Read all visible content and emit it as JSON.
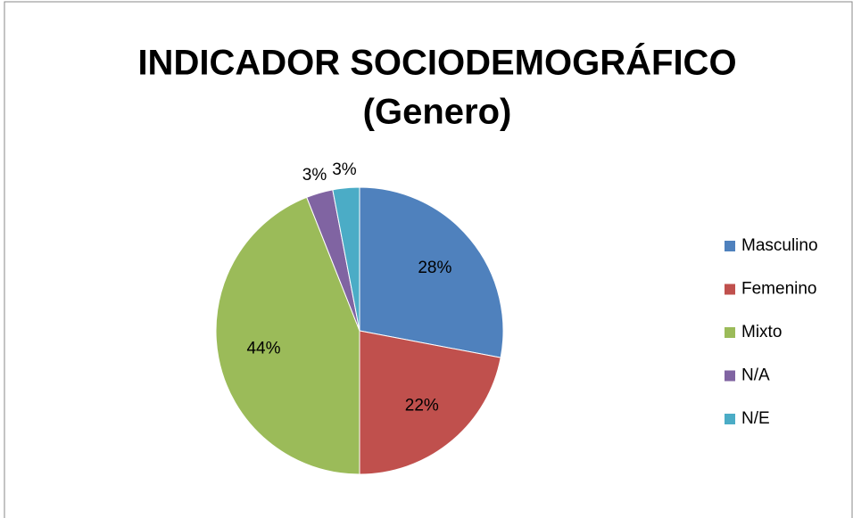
{
  "chart_data": {
    "type": "pie",
    "title": [
      "INDICADOR SOCIODEMOGRÁFICO",
      "(Genero)"
    ],
    "categories": [
      "Masculino",
      "Femenino",
      "Mixto",
      "N/A",
      "N/E"
    ],
    "values": [
      28,
      22,
      44,
      3,
      3
    ],
    "value_labels": [
      "28%",
      "22%",
      "44%",
      "3%",
      "3%"
    ],
    "colors": [
      "#4f81bd",
      "#c0504d",
      "#9bbb59",
      "#8064a2",
      "#4bacc6"
    ],
    "legend": "right"
  }
}
